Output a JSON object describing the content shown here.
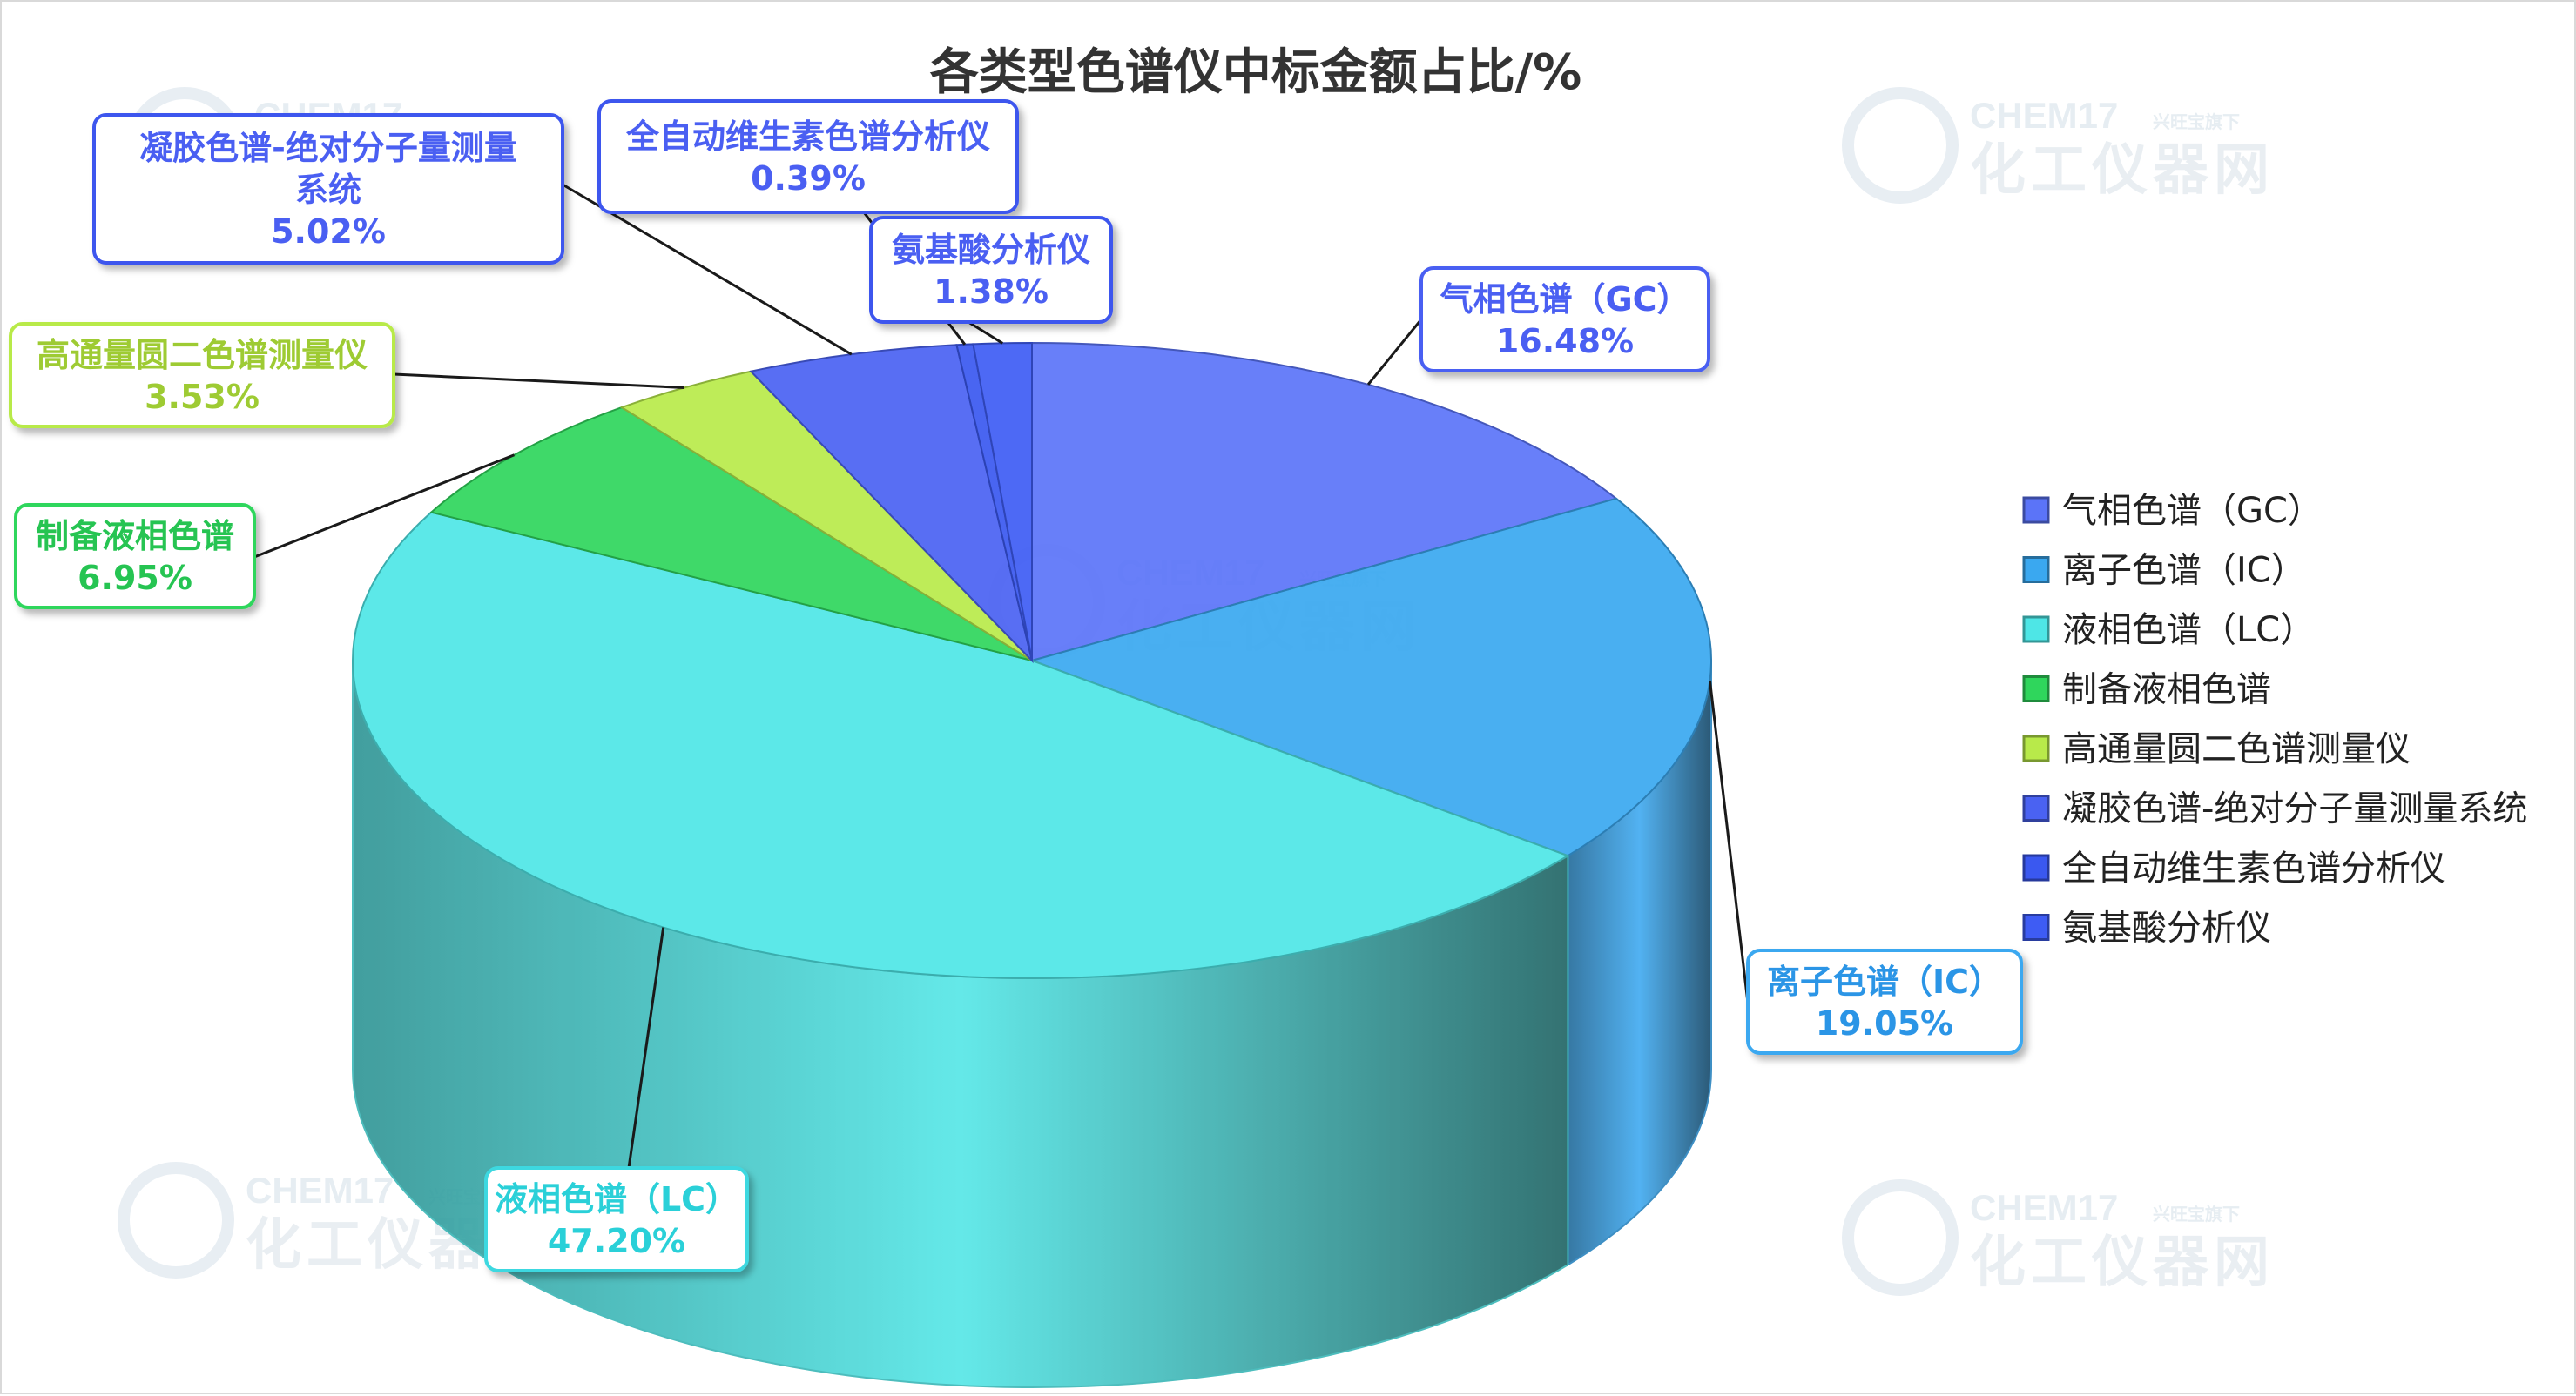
{
  "chart_data": {
    "type": "pie",
    "title": "各类型色谱仪中标金额占比/%",
    "categories": [
      "气相色谱（GC）",
      "离子色谱（IC）",
      "液相色谱（LC）",
      "制备液相色谱",
      "高通量圆二色谱测量仪",
      "凝胶色谱-绝对分子量测量系统",
      "全自动维生素色谱分析仪",
      "氨基酸分析仪"
    ],
    "values": [
      16.48,
      19.05,
      47.2,
      6.95,
      3.53,
      5.02,
      0.39,
      1.38
    ],
    "value_labels": [
      "16.48%",
      "19.05%",
      "47.20%",
      "6.95%",
      "3.53%",
      "5.02%",
      "0.39%",
      "1.38%"
    ],
    "colors": [
      "#5b74f8",
      "#3aa8f0",
      "#4ee6e6",
      "#2fd65c",
      "#b8ea4a",
      "#4a62f2",
      "#3a58f0",
      "#3e5cf4"
    ],
    "legend_placement": "right",
    "style": "3d-pie"
  },
  "watermark": {
    "brand": "CHEM17",
    "tagline": "兴旺宝旗下",
    "name": "化工仪器网"
  }
}
